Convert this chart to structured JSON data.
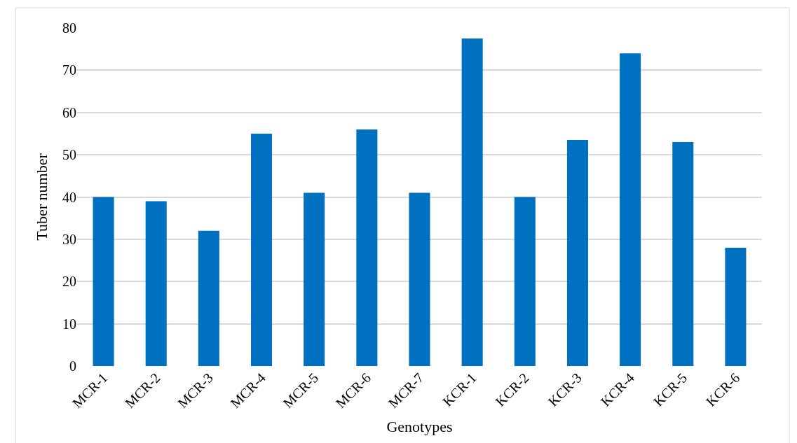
{
  "chart_data": {
    "type": "bar",
    "xlabel": "Genotypes",
    "ylabel": "Tuber number",
    "categories": [
      "MCR-1",
      "MCR-2",
      "MCR-3",
      "MCR-4",
      "MCR-5",
      "MCR-6",
      "MCR-7",
      "KCR-1",
      "KCR-2",
      "KCR-3",
      "KCR-4",
      "KCR-5",
      "KCR-6"
    ],
    "values": [
      40,
      39,
      32,
      55,
      41,
      56,
      41,
      77.5,
      40,
      53.5,
      74,
      53,
      28
    ],
    "color": "#0070c0",
    "ylim": [
      0,
      80
    ],
    "yticks": [
      0,
      10,
      20,
      30,
      40,
      50,
      60,
      70,
      80
    ],
    "grid": "y",
    "legend": false
  }
}
